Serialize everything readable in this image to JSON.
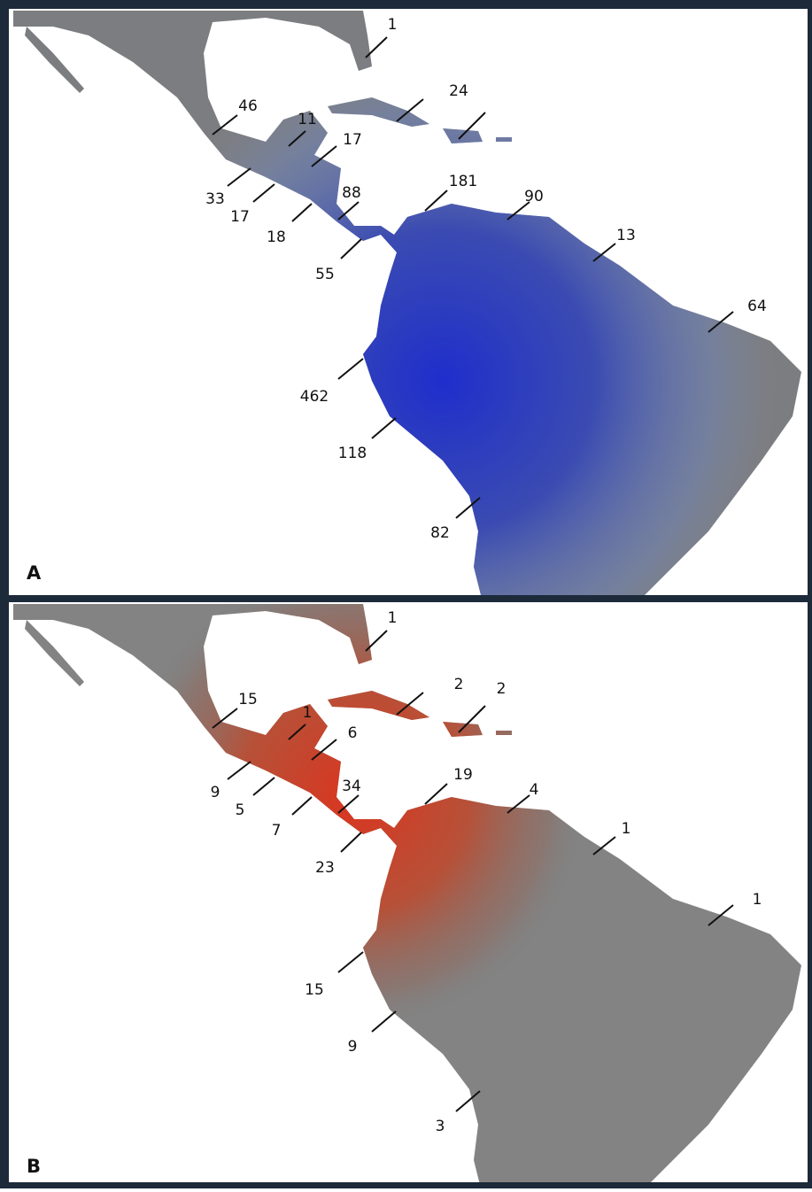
{
  "panels": [
    {
      "label": "A",
      "markers": [
        1,
        24,
        46,
        11,
        17,
        33,
        17,
        18,
        88,
        181,
        90,
        13,
        55,
        64,
        462,
        118,
        82
      ]
    },
    {
      "label": "B",
      "markers": [
        1,
        2,
        2,
        15,
        1,
        6,
        9,
        5,
        7,
        34,
        19,
        4,
        1,
        23,
        1,
        15,
        9,
        3
      ]
    }
  ]
}
